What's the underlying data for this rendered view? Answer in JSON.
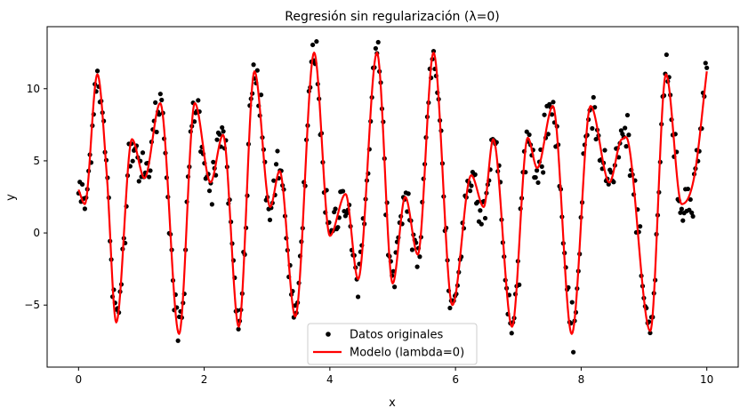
{
  "chart_data": {
    "type": "scatter",
    "title": "Regresión sin regularización (λ=0)",
    "xlabel": "x",
    "ylabel": "y",
    "xlim": [
      -0.5,
      10.5
    ],
    "ylim": [
      -9.3,
      14.3
    ],
    "xticks": [
      0,
      2,
      4,
      6,
      8,
      10
    ],
    "yticks": [
      -5,
      0,
      5,
      10
    ],
    "grid": false,
    "legend_position": "bottom-center",
    "series": [
      {
        "name": "Datos originales",
        "kind": "scatter",
        "color": "#000000",
        "x_range": [
          0,
          10
        ],
        "point_count": 500,
        "note_values": "points follow the model curve with noise (std ≈ 0.8)"
      },
      {
        "name": "Modelo (lambda=0)",
        "kind": "line",
        "color": "#ff0000",
        "x": [
          0,
          0.1,
          0.3,
          0.45,
          0.6,
          0.85,
          1.05,
          1.3,
          1.6,
          1.85,
          2.1,
          2.3,
          2.55,
          2.8,
          3.05,
          3.2,
          3.45,
          3.75,
          4.0,
          4.25,
          4.45,
          4.75,
          5.0,
          5.2,
          5.4,
          5.65,
          5.95,
          6.25,
          6.45,
          6.6,
          6.9,
          7.15,
          7.3,
          7.55,
          7.85,
          8.15,
          8.45,
          8.65,
          8.75,
          9.1,
          9.35,
          9.6,
          9.8,
          10.0
        ],
        "y": [
          3.0,
          2.0,
          11.0,
          4.0,
          -6.2,
          6.5,
          3.8,
          9.0,
          -7.0,
          9.0,
          3.5,
          6.8,
          -6.5,
          11.2,
          1.8,
          4.3,
          -5.8,
          12.5,
          -0.2,
          2.7,
          -3.2,
          12.5,
          -3.5,
          2.5,
          -1.5,
          12.5,
          -5.0,
          4.0,
          1.8,
          6.5,
          -6.5,
          6.6,
          4.5,
          8.8,
          -7.0,
          8.8,
          3.5,
          6.5,
          6.3,
          -6.8,
          11.0,
          2.0,
          3.9,
          11.2
        ]
      }
    ],
    "legend": [
      {
        "label": "Datos originales",
        "marker": "dot",
        "color": "#000000"
      },
      {
        "label": "Modelo (lambda=0)",
        "marker": "line",
        "color": "#ff0000"
      }
    ]
  }
}
